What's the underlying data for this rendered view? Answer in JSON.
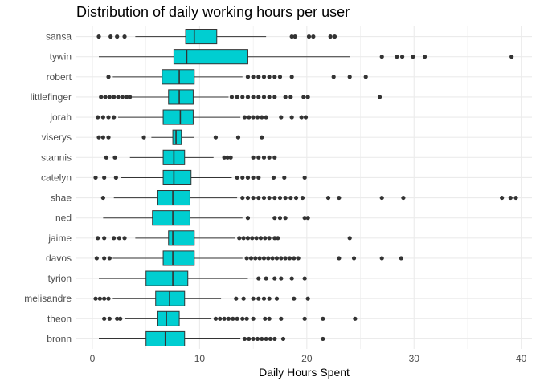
{
  "chart_data": {
    "type": "boxplot",
    "orientation": "horizontal",
    "title": "Distribution of daily working hours per user",
    "xlabel": "Daily Hours Spent",
    "ylabel": "",
    "xlim": [
      -1.5,
      41
    ],
    "xticks": [
      0,
      10,
      20,
      30,
      40
    ],
    "grid": true,
    "legend": "none",
    "colors": {
      "box_fill": "#00CED1",
      "box_stroke": "#333333",
      "grid": "#EBEBEB",
      "outlier": "#333333"
    },
    "categories": [
      "sansa",
      "tywin",
      "robert",
      "littlefinger",
      "jorah",
      "viserys",
      "stannis",
      "catelyn",
      "shae",
      "ned",
      "jaime",
      "davos",
      "tyrion",
      "melisandre",
      "theon",
      "bronn"
    ],
    "boxes": [
      {
        "name": "sansa",
        "whisker_low": 4.0,
        "q1": 8.7,
        "median": 9.5,
        "q3": 11.6,
        "whisker_high": 16.2,
        "outliers": [
          0.6,
          1.7,
          2.3,
          3.0,
          18.6,
          18.9,
          20.2,
          20.6,
          22.2,
          22.6
        ]
      },
      {
        "name": "tywin",
        "whisker_low": 0.6,
        "q1": 7.6,
        "median": 8.8,
        "q3": 14.5,
        "whisker_high": 24.0,
        "outliers": [
          27.0,
          28.4,
          28.9,
          29.9,
          31.0,
          39.1
        ]
      },
      {
        "name": "robert",
        "whisker_low": 1.9,
        "q1": 6.5,
        "median": 8.1,
        "q3": 9.5,
        "whisker_high": 14.0,
        "outliers": [
          1.5,
          14.5,
          15.0,
          15.5,
          16.0,
          16.5,
          17.0,
          17.5,
          18.6,
          22.5,
          24.0,
          25.5
        ]
      },
      {
        "name": "littlefinger",
        "whisker_low": 3.7,
        "q1": 7.1,
        "median": 8.1,
        "q3": 9.4,
        "whisker_high": 12.7,
        "outliers": [
          0.8,
          1.2,
          1.6,
          2.0,
          2.4,
          2.8,
          3.2,
          3.5,
          13.0,
          13.5,
          14.0,
          14.5,
          15.0,
          15.5,
          16.0,
          16.5,
          17.0,
          18.0,
          18.5,
          19.7,
          20.1,
          26.8
        ]
      },
      {
        "name": "jorah",
        "whisker_low": 2.4,
        "q1": 6.6,
        "median": 8.2,
        "q3": 9.4,
        "whisker_high": 13.8,
        "outliers": [
          0.5,
          1.0,
          1.5,
          2.0,
          14.2,
          14.6,
          15.0,
          15.4,
          15.8,
          16.2,
          17.6,
          18.6,
          19.5,
          19.9
        ]
      },
      {
        "name": "viserys",
        "whisker_low": 5.5,
        "q1": 7.5,
        "median": 7.8,
        "q3": 8.3,
        "whisker_high": 9.5,
        "outliers": [
          0.6,
          1.0,
          1.5,
          4.8,
          11.5,
          13.6,
          15.8
        ]
      },
      {
        "name": "stannis",
        "whisker_low": 3.5,
        "q1": 6.6,
        "median": 7.6,
        "q3": 8.6,
        "whisker_high": 11.3,
        "outliers": [
          1.3,
          2.1,
          12.3,
          12.6,
          12.9,
          15.0,
          15.5,
          16.0,
          16.5,
          17.0
        ]
      },
      {
        "name": "catelyn",
        "whisker_low": 2.7,
        "q1": 6.6,
        "median": 7.6,
        "q3": 9.2,
        "whisker_high": 13.0,
        "outliers": [
          0.3,
          1.1,
          2.2,
          13.5,
          14.0,
          14.5,
          15.0,
          15.5,
          16.9,
          17.9,
          19.8
        ]
      },
      {
        "name": "shae",
        "whisker_low": 2.0,
        "q1": 6.1,
        "median": 7.5,
        "q3": 9.1,
        "whisker_high": 13.5,
        "outliers": [
          1.0,
          14.0,
          14.5,
          15.0,
          15.5,
          16.0,
          16.5,
          17.0,
          17.5,
          18.0,
          18.5,
          19.0,
          19.6,
          22.0,
          23.0,
          27.0,
          29.0,
          38.2,
          39.0,
          39.5
        ]
      },
      {
        "name": "ned",
        "whisker_low": 1.0,
        "q1": 5.6,
        "median": 7.5,
        "q3": 9.1,
        "whisker_high": 14.0,
        "outliers": [
          14.5,
          17.0,
          17.5,
          18.0,
          19.8,
          20.1
        ]
      },
      {
        "name": "jaime",
        "whisker_low": 4.0,
        "q1": 7.1,
        "median": 7.5,
        "q3": 9.5,
        "whisker_high": 13.3,
        "outliers": [
          0.5,
          1.1,
          2.0,
          2.5,
          3.0,
          13.7,
          14.1,
          14.5,
          14.9,
          15.3,
          15.7,
          16.1,
          16.5,
          17.0,
          17.3,
          24.0
        ]
      },
      {
        "name": "davos",
        "whisker_low": 1.9,
        "q1": 6.6,
        "median": 7.5,
        "q3": 9.5,
        "whisker_high": 14.0,
        "outliers": [
          0.4,
          1.1,
          1.6,
          14.4,
          14.8,
          15.2,
          15.6,
          16.0,
          16.4,
          16.8,
          17.2,
          17.6,
          18.0,
          18.4,
          18.8,
          19.2,
          23.0,
          24.4,
          27.0,
          28.8
        ]
      },
      {
        "name": "tyrion",
        "whisker_low": 0.6,
        "q1": 5.0,
        "median": 7.5,
        "q3": 8.9,
        "whisker_high": 14.5,
        "outliers": [
          15.5,
          16.2,
          17.0,
          17.6,
          18.6,
          19.8
        ]
      },
      {
        "name": "melisandre",
        "whisker_low": 1.9,
        "q1": 5.9,
        "median": 7.2,
        "q3": 8.6,
        "whisker_high": 12.0,
        "outliers": [
          0.3,
          0.7,
          1.1,
          1.5,
          13.4,
          14.1,
          15.0,
          15.5,
          16.0,
          16.5,
          17.2,
          18.8,
          20.1
        ]
      },
      {
        "name": "theon",
        "whisker_low": 3.0,
        "q1": 6.1,
        "median": 6.9,
        "q3": 8.1,
        "whisker_high": 11.1,
        "outliers": [
          1.1,
          1.6,
          2.3,
          2.6,
          11.5,
          11.9,
          12.3,
          12.7,
          13.1,
          13.5,
          14.0,
          14.4,
          15.0,
          16.1,
          16.5,
          17.6,
          19.8,
          21.5,
          24.5
        ]
      },
      {
        "name": "bronn",
        "whisker_low": 0.6,
        "q1": 5.0,
        "median": 6.8,
        "q3": 8.6,
        "whisker_high": 13.8,
        "outliers": [
          14.2,
          14.6,
          15.0,
          15.4,
          15.8,
          16.2,
          16.6,
          17.0,
          17.8,
          21.5
        ]
      }
    ]
  }
}
